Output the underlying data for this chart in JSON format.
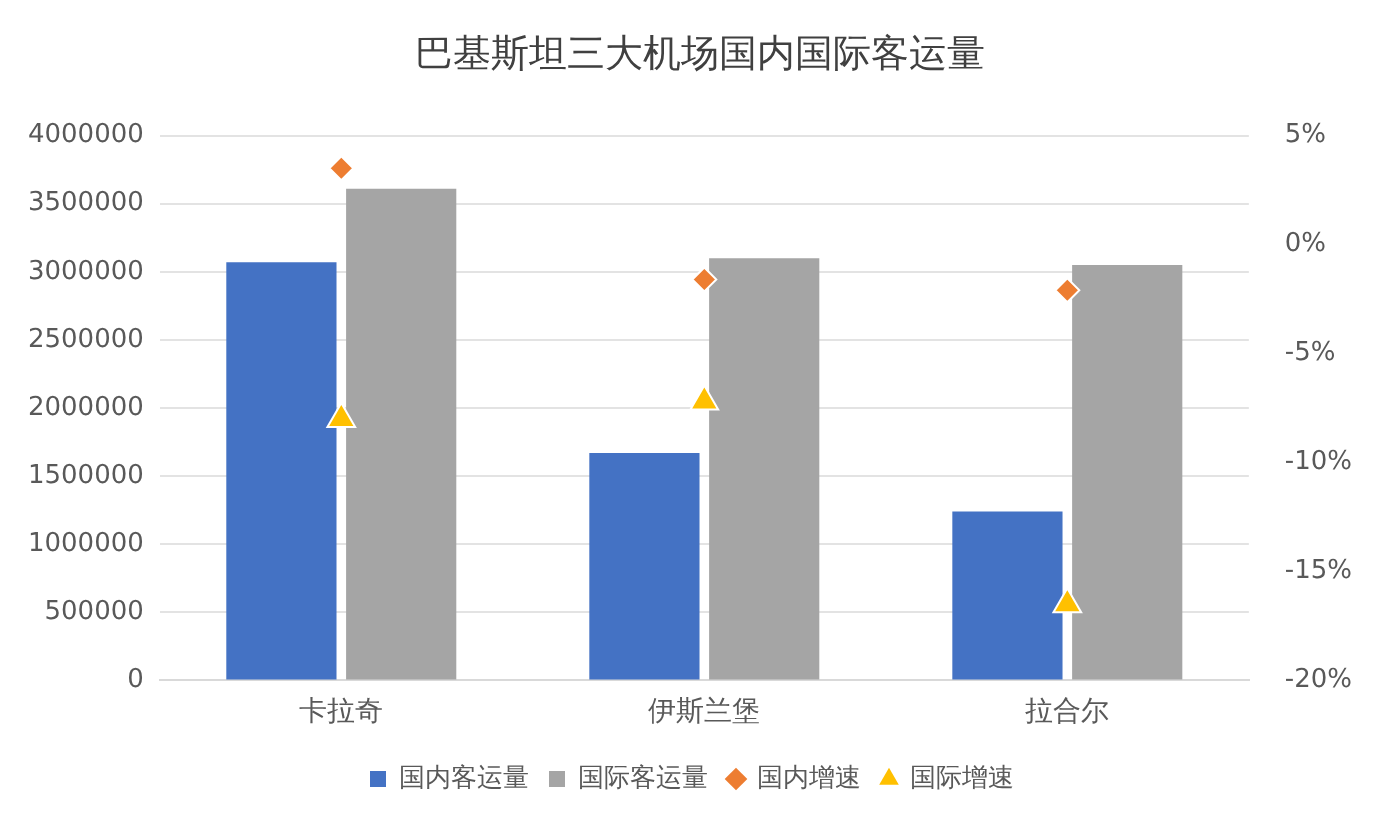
{
  "chart_data": {
    "type": "bar",
    "title": "巴基斯坦三大机场国内国际客运量",
    "categories": [
      "卡拉奇",
      "伊斯兰堡",
      "拉合尔"
    ],
    "series": [
      {
        "name": "国内客运量",
        "color": "#4472c4",
        "values": [
          3070000,
          1670000,
          1240000
        ]
      },
      {
        "name": "国际客运量",
        "color": "#a5a5a5",
        "values": [
          3610000,
          3100000,
          3050000
        ]
      },
      {
        "name": "国内增速",
        "type": "scatter",
        "axis": "y2",
        "marker": "diamond",
        "color": "#ed7d31",
        "values": [
          3.5,
          -1.6,
          -2.1
        ]
      },
      {
        "name": "国际增速",
        "type": "scatter",
        "axis": "y2",
        "marker": "triangle",
        "color": "#ffc000",
        "values": [
          -8.0,
          -7.2,
          -16.5
        ]
      }
    ],
    "ylim": [
      0,
      4000000
    ],
    "yticks": [
      0,
      500000,
      1000000,
      1500000,
      2000000,
      2500000,
      3000000,
      3500000,
      4000000
    ],
    "y2lim": [
      -20,
      5
    ],
    "y2ticks": [
      {
        "value": -20,
        "label": "-20%"
      },
      {
        "value": -15,
        "label": "-15%"
      },
      {
        "value": -10,
        "label": "-10%"
      },
      {
        "value": -5,
        "label": "-5%"
      },
      {
        "value": 0,
        "label": "0%"
      },
      {
        "value": 5,
        "label": "5%"
      }
    ],
    "grid": "y",
    "legend": "bottom"
  }
}
